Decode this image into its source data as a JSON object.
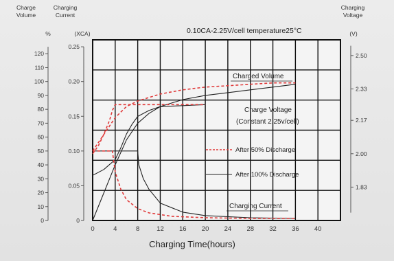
{
  "chart_data": {
    "type": "line",
    "annotation": "0.10CA-2.25V/cell   temperature25°C",
    "xlabel": "Charging Time(hours)",
    "xlim": [
      0,
      44
    ],
    "x_ticks": [
      "0",
      "4",
      "8",
      "12",
      "16",
      "20",
      "24",
      "28",
      "32",
      "36",
      "40"
    ],
    "left_axis_volume": {
      "header": [
        "Charge",
        "Volume"
      ],
      "unit": "%",
      "ylim": [
        0,
        130
      ],
      "ticks": [
        "0",
        "10",
        "20",
        "30",
        "40",
        "50",
        "60",
        "70",
        "80",
        "90",
        "100",
        "110",
        "120"
      ]
    },
    "left_axis_current": {
      "header": [
        "Charging",
        "Current"
      ],
      "unit": "(XCA)",
      "ylim": [
        0,
        0.26
      ],
      "ticks": [
        "0",
        "0.05",
        "0.10",
        "0.15",
        "0.20",
        "0.25"
      ]
    },
    "right_axis_voltage": {
      "header": [
        "Charging",
        "Voltage"
      ],
      "unit": "(V)",
      "ylim": [
        1.66,
        2.58
      ],
      "ticks": [
        "1.83",
        "2.00",
        "2.17",
        "2.33",
        "2.50"
      ]
    },
    "labels": {
      "charged_volume": "Charged Volume",
      "charge_voltage_1": "Charge Voltage",
      "charge_voltage_2": "(Constant 2.25v/cell)",
      "charging_current": "Charging Current"
    },
    "legend": [
      {
        "label": "After 50% Discharge",
        "style": "dashed",
        "color": "#e03a3a"
      },
      {
        "label": "After 100% Discharge",
        "style": "solid",
        "color": "#222222"
      }
    ],
    "series": [
      {
        "group": "Charged Volume",
        "legend": "After 100% Discharge",
        "axis": "volume",
        "x": [
          0,
          2,
          4,
          6,
          8,
          10,
          12,
          16,
          20,
          24,
          28,
          32,
          36
        ],
        "y": [
          0,
          20,
          40,
          58,
          70,
          77,
          82,
          87,
          90,
          92,
          94,
          96,
          98
        ]
      },
      {
        "group": "Charged Volume",
        "legend": "After 50% Discharge",
        "axis": "volume",
        "x": [
          0,
          1,
          2,
          3,
          4,
          6,
          8,
          12,
          16,
          20,
          24,
          28,
          32,
          36
        ],
        "y": [
          50,
          56,
          62,
          68,
          74,
          82,
          86,
          91,
          94,
          96,
          97,
          98,
          99,
          99
        ]
      },
      {
        "group": "Charge Voltage",
        "legend": "After 100% Discharge",
        "axis": "voltage",
        "x": [
          0,
          2,
          4,
          5,
          6,
          7,
          8,
          10,
          12,
          16,
          20
        ],
        "y": [
          1.89,
          1.92,
          1.97,
          2.03,
          2.1,
          2.15,
          2.19,
          2.22,
          2.24,
          2.245,
          2.25
        ]
      },
      {
        "group": "Charge Voltage",
        "legend": "After 50% Discharge",
        "axis": "voltage",
        "x": [
          0,
          1,
          2,
          3,
          3.5,
          4,
          20
        ],
        "y": [
          2.0,
          2.04,
          2.1,
          2.17,
          2.22,
          2.25,
          2.25
        ]
      },
      {
        "group": "Charging Current",
        "legend": "After 100% Discharge",
        "axis": "current",
        "x": [
          0,
          8,
          8.2,
          9,
          10,
          12,
          16,
          20,
          28,
          36
        ],
        "y": [
          0.1,
          0.1,
          0.08,
          0.06,
          0.045,
          0.025,
          0.012,
          0.007,
          0.004,
          0.003
        ]
      },
      {
        "group": "Charging Current",
        "legend": "After 50% Discharge",
        "axis": "current",
        "x": [
          0,
          3.5,
          4,
          5,
          6,
          8,
          10,
          14,
          20,
          28,
          36
        ],
        "y": [
          0.1,
          0.1,
          0.07,
          0.045,
          0.03,
          0.017,
          0.011,
          0.006,
          0.004,
          0.003,
          0.003
        ]
      }
    ]
  },
  "colors": {
    "grid": "#111111",
    "solid": "#222222",
    "dashed": "#e03a3a"
  }
}
